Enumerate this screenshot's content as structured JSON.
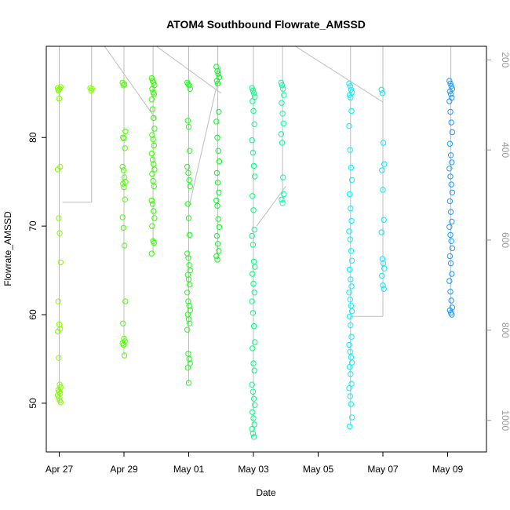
{
  "chart_data": {
    "type": "scatter",
    "title": "ATOM4 Southbound Flowrate_AMSSD",
    "xlabel": "Date",
    "ylabel": "Flowrate_AMSSD",
    "x_ticks": [
      "Apr 27",
      "Apr 29",
      "May 01",
      "May 03",
      "May 05",
      "May 07",
      "May 09"
    ],
    "x_tick_days": [
      0,
      2,
      4,
      6,
      8,
      10,
      12
    ],
    "xlim_days": [
      -0.4,
      13.2
    ],
    "y_ticks": [
      50,
      60,
      70,
      80
    ],
    "ylim": [
      44.5,
      90.3
    ],
    "right_axis": {
      "ticks": [
        "200",
        "400",
        "600",
        "800",
        "1000"
      ],
      "values": [
        200,
        400,
        600,
        800,
        1000
      ],
      "ylim": [
        1070,
        170
      ]
    },
    "series": [
      {
        "day": 0.0,
        "color": "#80ff00",
        "values": [
          85.6,
          85.4,
          85.5,
          85.7,
          85.3,
          84.4,
          76.7,
          76.4,
          70.9,
          69.2,
          65.9,
          61.5,
          58.9,
          58.4,
          58.1,
          55.1,
          52.1,
          51.8,
          51.5,
          51.3,
          51.1,
          50.9,
          50.6,
          50.3,
          50.1
        ]
      },
      {
        "day": 1.0,
        "color": "#80ff00",
        "values": [
          85.6,
          85.3,
          85.5
        ]
      },
      {
        "day": 2.0,
        "color": "#4dff00",
        "values": [
          86.2,
          85.9,
          86.0,
          80.7,
          80.0,
          79.9,
          78.8,
          76.7,
          76.3,
          75.5,
          75.0,
          74.8,
          74.4,
          73.0,
          71.0,
          69.8,
          67.8,
          61.5,
          59.0,
          57.3,
          57.0,
          56.8,
          56.6,
          55.4
        ]
      },
      {
        "day": 2.9,
        "color": "#33ff00",
        "values": [
          86.7,
          86.4,
          86.2,
          85.9,
          85.5,
          85.1,
          84.9,
          84.3,
          83.2,
          82.2,
          81.0,
          80.3,
          79.8,
          79.1,
          78.2,
          77.5,
          77.0,
          76.4,
          75.9,
          75.1,
          74.5,
          72.9,
          72.5,
          71.7,
          70.9,
          70.0,
          68.3,
          68.1,
          66.9
        ]
      },
      {
        "day": 4.0,
        "color": "#1aff1a",
        "values": [
          86.2,
          86.0,
          85.9,
          85.5,
          81.9,
          81.2,
          78.5,
          76.7,
          76.0,
          75.2,
          74.5,
          72.5,
          70.9,
          69.0,
          66.9,
          66.4,
          65.6,
          65.0,
          64.5,
          64.0,
          63.4,
          62.5,
          61.5,
          61.0,
          60.5,
          60.0,
          59.5,
          59.0,
          58.3,
          55.6,
          55.0,
          54.5,
          54.0,
          52.3
        ]
      },
      {
        "day": 4.9,
        "color": "#00ff1a",
        "values": [
          88.0,
          87.5,
          87.2,
          86.8,
          86.4,
          86.1,
          82.9,
          81.8,
          80.0,
          78.5,
          77.3,
          76.0,
          74.9,
          73.8,
          72.9,
          72.3,
          70.8,
          69.9,
          68.9,
          68.0,
          67.2,
          66.6,
          66.2
        ]
      },
      {
        "day": 6.0,
        "color": "#00ff80",
        "values": [
          85.6,
          85.3,
          85.0,
          84.6,
          84.1,
          83.0,
          81.5,
          79.7,
          78.3,
          76.8,
          75.6,
          73.4,
          71.8,
          69.6,
          68.9,
          67.9,
          66.0,
          65.4,
          64.6,
          63.5,
          62.5,
          61.5,
          60.2,
          58.7,
          56.9,
          56.2,
          54.5,
          53.7,
          52.1,
          51.3,
          50.5,
          49.8,
          49.0,
          48.3,
          47.6,
          47.1,
          46.6,
          46.2
        ]
      },
      {
        "day": 6.9,
        "color": "#00ffa0",
        "values": [
          86.2,
          85.9,
          85.5,
          84.8,
          83.9,
          82.7,
          81.6,
          80.4,
          79.4,
          75.5,
          73.6,
          73.0,
          72.6
        ]
      },
      {
        "day": 9.0,
        "color": "#00f2ff",
        "values": [
          86.1,
          85.8,
          85.4,
          85.1,
          84.8,
          84.5,
          83.0,
          81.3,
          78.6,
          76.6,
          75.2,
          73.6,
          72.0,
          70.6,
          69.4,
          68.5,
          67.2,
          66.1,
          65.1,
          64.0,
          63.2,
          62.5,
          61.7,
          61.0,
          60.4,
          59.8,
          58.8,
          57.5,
          56.6,
          55.8,
          55.2,
          54.6,
          54.1,
          53.3,
          52.2,
          51.7,
          50.8,
          49.9,
          48.4,
          47.4
        ]
      },
      {
        "day": 10.0,
        "color": "#00e8ff",
        "values": [
          85.4,
          85.0,
          79.4,
          77.0,
          76.3,
          74.1,
          70.7,
          69.3,
          66.3,
          65.8,
          65.2,
          64.4,
          63.3,
          62.9
        ]
      },
      {
        "day": 12.1,
        "color": "#1a9cff",
        "values": [
          86.4,
          86.1,
          85.8,
          85.5,
          85.2,
          84.9,
          84.5,
          84.1,
          82.9,
          81.7,
          80.6,
          79.3,
          78.0,
          77.2,
          76.5,
          75.6,
          74.7,
          73.8,
          72.8,
          71.6,
          70.5,
          69.9,
          69.0,
          68.3,
          67.5,
          66.6,
          65.8,
          64.6,
          63.8,
          62.6,
          61.6,
          60.8,
          60.5,
          60.2,
          60.0
        ]
      }
    ]
  }
}
